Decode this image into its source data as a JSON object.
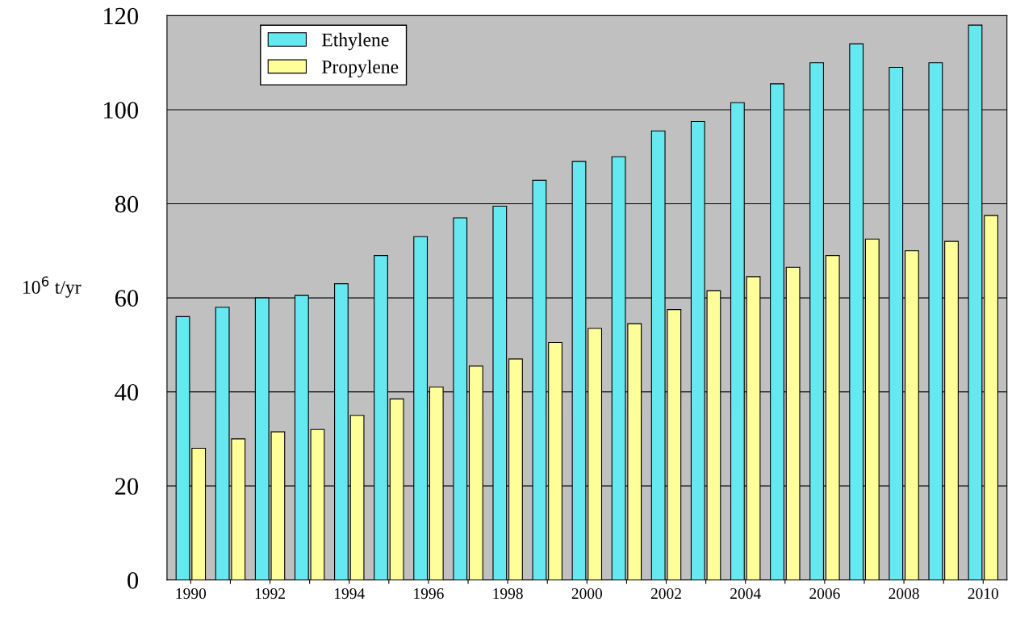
{
  "chart_data": {
    "type": "bar",
    "ylabel": "10$^{6}$ t/yr",
    "categories": [
      "1990",
      null,
      "1992",
      null,
      "1994",
      null,
      "1996",
      null,
      "1998",
      null,
      "2000",
      null,
      "2002",
      null,
      "2004",
      null,
      "2006",
      null,
      "2008",
      null,
      "2010"
    ],
    "series": [
      {
        "name": "Ethylene",
        "color": "#66e8f0",
        "values": [
          56,
          58,
          60,
          60.5,
          63,
          69,
          73,
          77,
          79.5,
          85,
          89,
          90,
          95.5,
          97.5,
          101.5,
          105.5,
          110,
          114,
          109,
          110,
          118
        ]
      },
      {
        "name": "Propylene",
        "color": "#ffff99",
        "values": [
          28,
          30,
          31.5,
          32,
          35,
          38.5,
          41,
          45.5,
          47,
          50.5,
          53.5,
          54.5,
          57.5,
          61.5,
          64.5,
          66.5,
          69,
          72.5,
          70,
          72,
          77.5
        ]
      }
    ],
    "ylim": [
      0,
      120
    ],
    "yticks": [
      0,
      20,
      40,
      60,
      80,
      100,
      120
    ],
    "grid": "y",
    "legend": "top left"
  }
}
